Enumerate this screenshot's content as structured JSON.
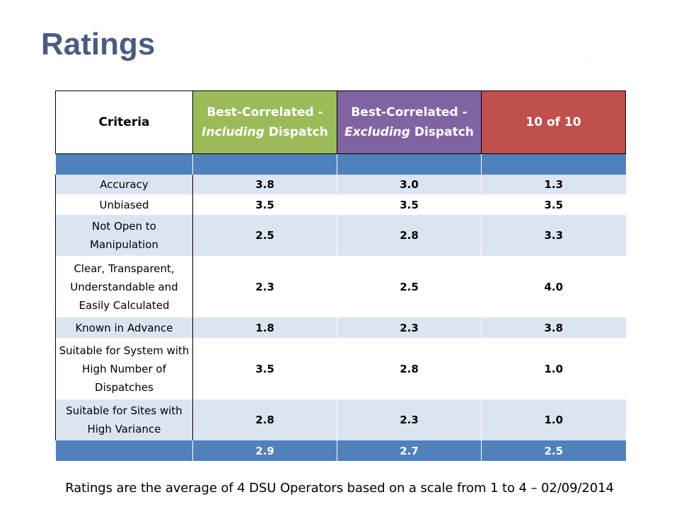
{
  "slide": {
    "title": "Ratings",
    "footnote": "Ratings are the average of 4 DSU Operators based on a scale from 1 to 4 – 02/09/2014"
  },
  "table": {
    "headers": {
      "criteria": "Criteria",
      "including_line1": "Best-Correlated -",
      "including_italic": "Including",
      "including_rest": " Dispatch",
      "excluding_line1": "Best-Correlated -",
      "excluding_italic": "Excluding",
      "excluding_rest": " Dispatch",
      "ten_of_ten": "10 of 10"
    },
    "rows": [
      {
        "criteria": "Accuracy",
        "including": "3.8",
        "excluding": "3.0",
        "ten": "1.3"
      },
      {
        "criteria": "Unbiased",
        "including": "3.5",
        "excluding": "3.5",
        "ten": "3.5"
      },
      {
        "criteria": "Not Open to Manipulation",
        "including": "2.5",
        "excluding": "2.8",
        "ten": "3.3"
      },
      {
        "criteria": "Clear, Transparent, Understandable and Easily Calculated",
        "including": "2.3",
        "excluding": "2.5",
        "ten": "4.0"
      },
      {
        "criteria": "Known in Advance",
        "including": "1.8",
        "excluding": "2.3",
        "ten": "3.8"
      },
      {
        "criteria": "Suitable for System with High Number of Dispatches",
        "including": "3.5",
        "excluding": "2.8",
        "ten": "1.0"
      },
      {
        "criteria": "Suitable for Sites with High Variance",
        "including": "2.8",
        "excluding": "2.3",
        "ten": "1.0"
      }
    ],
    "totals": {
      "criteria": "",
      "including": "2.9",
      "excluding": "2.7",
      "ten": "2.5"
    }
  },
  "colors": {
    "title": "#4a5b80",
    "including_header": "#9bbb59",
    "excluding_header": "#8064a2",
    "ten_header": "#c0504d",
    "band": "#4f81bd",
    "row_shade": "#dbe5f1"
  }
}
